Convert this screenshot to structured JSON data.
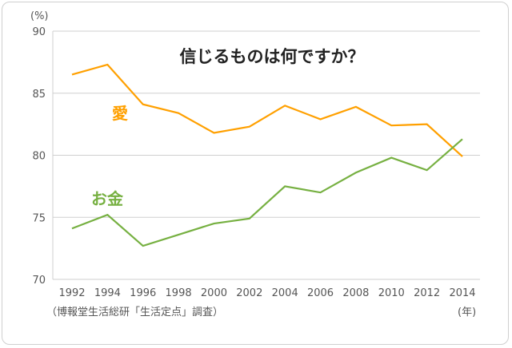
{
  "chart_data": {
    "type": "line",
    "title": "信じるものは何ですか？",
    "ylabel": "(%)",
    "xlabel": "(年)",
    "source": "（博報堂生活総研「生活定点」調査）",
    "ylim": [
      70,
      90
    ],
    "yticks": [
      70,
      75,
      80,
      85,
      90
    ],
    "x": [
      "1992",
      "1994",
      "1996",
      "1998",
      "2000",
      "2002",
      "2004",
      "2006",
      "2008",
      "2010",
      "2012",
      "2014"
    ],
    "grid": true,
    "series": [
      {
        "name": "愛",
        "color": "#ffa000",
        "values": [
          86.5,
          87.3,
          84.1,
          83.4,
          81.8,
          82.3,
          84.0,
          82.9,
          83.9,
          82.4,
          82.5,
          79.9
        ]
      },
      {
        "name": "お金",
        "color": "#76b041",
        "values": [
          74.1,
          75.2,
          72.7,
          73.6,
          74.5,
          74.9,
          77.5,
          77.0,
          78.6,
          79.8,
          78.8,
          81.3
        ]
      }
    ]
  }
}
